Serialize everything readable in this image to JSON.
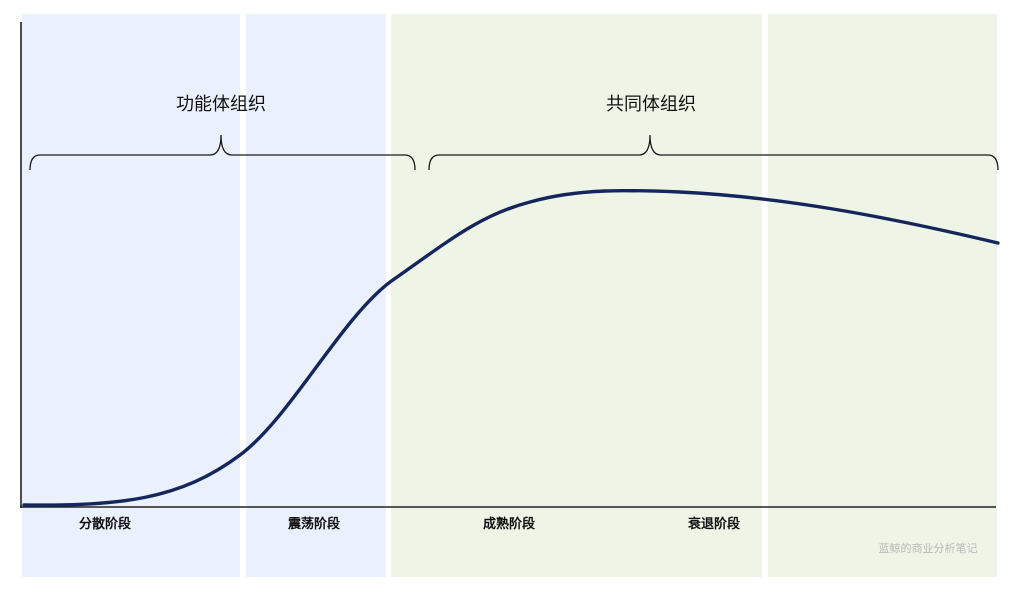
{
  "colors": {
    "background": "#ffffff",
    "blue_band": "#eaf1fd",
    "green_band": "#eef5e6",
    "curve": "#14265c",
    "axis": "#222222",
    "bracket": "#1a1a1a",
    "label": "#111111",
    "watermark": "#b9b9b9"
  },
  "groups": [
    {
      "label": "功能体组织"
    },
    {
      "label": "共同体组织"
    }
  ],
  "stages": [
    {
      "label": "分散阶段"
    },
    {
      "label": "震荡阶段"
    },
    {
      "label": "成熟阶段"
    },
    {
      "label": "衰退阶段"
    }
  ],
  "watermark": "蓝鲸的商业分析笔记"
}
